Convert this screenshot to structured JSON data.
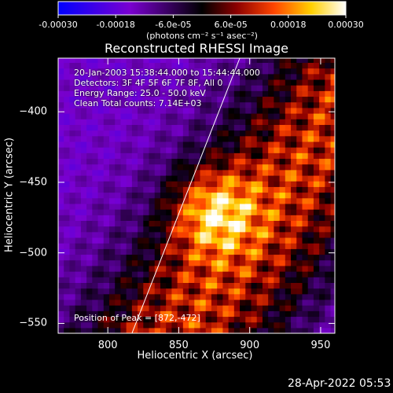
{
  "colorbar": {
    "tick_labels": [
      "-0.00030",
      "-0.00018",
      "-6.0e-05",
      "6.0e-05",
      "0.00018",
      "0.00030"
    ],
    "tick_values": [
      -0.0003,
      -0.00018,
      -6e-05,
      6e-05,
      0.00018,
      0.0003
    ],
    "range": [
      -0.0003,
      0.0003
    ],
    "unit_label": "(photons cm⁻² s⁻¹ asec⁻²)",
    "colors": [
      "#0000ff",
      "#7a00d0",
      "#000000",
      "#8b0000",
      "#ff4500",
      "#ffd000",
      "#ffffff"
    ]
  },
  "chart_data": {
    "type": "heatmap",
    "title": "Reconstructed RHESSI Image",
    "xlabel": "Heliocentric X (arcsec)",
    "ylabel": "Heliocentric Y (arcsec)",
    "xlim": [
      765,
      960
    ],
    "ylim": [
      -557,
      -362
    ],
    "x_ticks": [
      800,
      850,
      900,
      950
    ],
    "y_ticks": [
      -400,
      -450,
      -500,
      -550
    ],
    "x_tick_labels": [
      "800",
      "850",
      "900",
      "950"
    ],
    "y_tick_labels": [
      "−400",
      "−450",
      "−500",
      "−550"
    ],
    "limb_line": [
      [
        817,
        -557
      ],
      [
        893,
        -362
      ]
    ],
    "peak_position": [
      872,
      -472
    ],
    "annotations": {
      "line1": "20-Jan-2003 15:38:44.000 to 15:44:44.000",
      "line2": "Detectors: 3F 4F 5F 6F 7F 8F, All 0",
      "line3": "Energy Range: 25.0 - 50.0 keV",
      "line4": "Clean    Total counts: 7.14E+03",
      "peak": "Position of Peak = [872,-472]"
    }
  },
  "footer": {
    "date": "28-Apr-2022 05:53"
  }
}
